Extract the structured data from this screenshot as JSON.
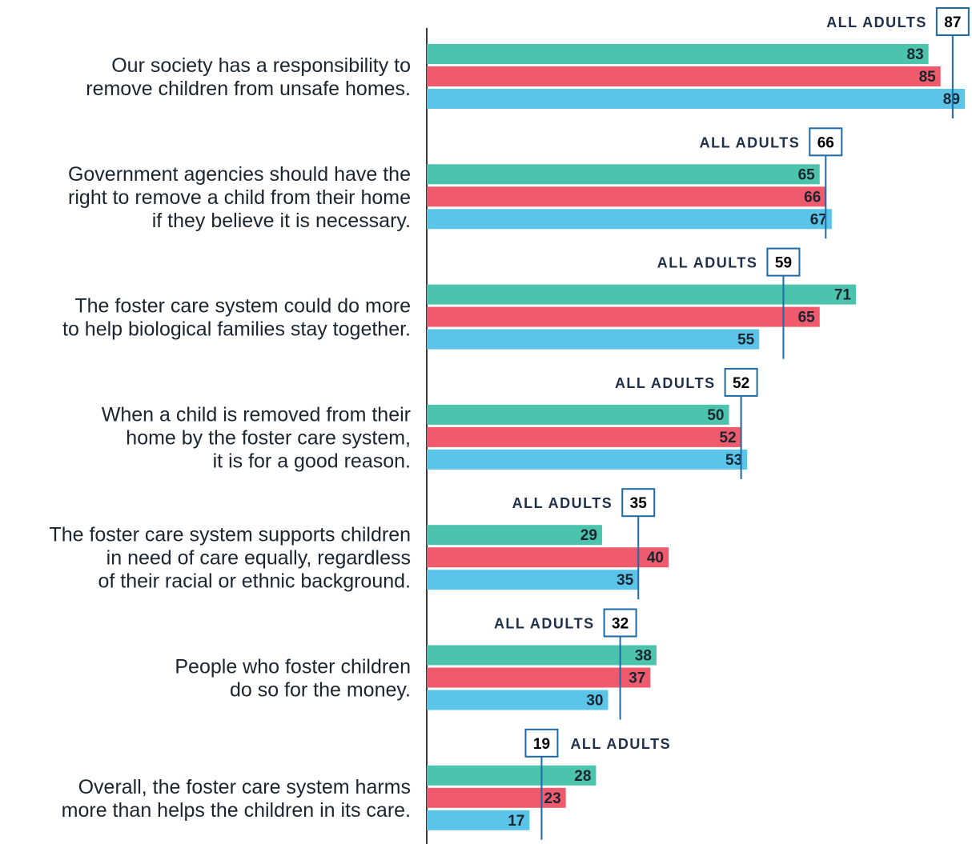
{
  "chart_data": {
    "type": "bar",
    "orientation": "horizontal",
    "series_colors": [
      "#4cc3ad",
      "#ef5a6c",
      "#5bc4e9"
    ],
    "reference_color": "#1c6aa8",
    "reference_label": "ALL ADULTS",
    "xlim": [
      0,
      100
    ],
    "categories": [
      [
        "Our society has a responsibility to",
        "remove children from unsafe homes."
      ],
      [
        "Government agencies should have the",
        "right to remove a child from their home",
        "if they believe it is necessary."
      ],
      [
        "The foster care system could do more",
        "to help biological families stay together."
      ],
      [
        "When a child is removed from their",
        "home by the foster care system,",
        "it is for a good reason."
      ],
      [
        "The foster care system supports children",
        "in need of care equally, regardless",
        "of their racial or ethnic background."
      ],
      [
        "People who foster children",
        "do so for the money."
      ],
      [
        "Overall, the foster care system harms",
        "more than helps the children in its care."
      ]
    ],
    "series": [
      {
        "values": [
          83,
          65,
          71,
          50,
          29,
          38,
          28
        ]
      },
      {
        "values": [
          85,
          66,
          65,
          52,
          40,
          37,
          23
        ]
      },
      {
        "values": [
          89,
          67,
          55,
          53,
          35,
          30,
          17
        ]
      }
    ],
    "all_adults": [
      87,
      66,
      59,
      52,
      35,
      32,
      19
    ]
  }
}
